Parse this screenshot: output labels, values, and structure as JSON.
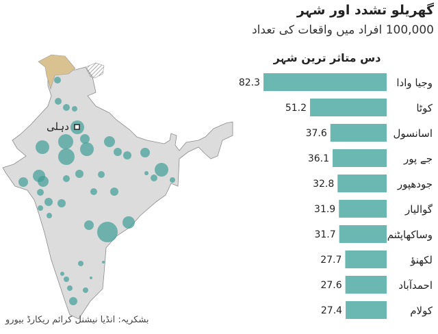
{
  "header": {
    "title": "گھریلو تشدد اور شہر",
    "subtitle": "100,000 افراد میں واقعات کی تعداد"
  },
  "map": {
    "capital_label": "دہلی",
    "land_color": "#dcdcdc",
    "disputed_color": "#d9c290",
    "bubble_color": "#3f9c96"
  },
  "chart_data": {
    "type": "bar",
    "title": "دس متاثر ترین شہر",
    "categories": [
      "وجیا وادا",
      "کوٹا",
      "اسانسول",
      "جے پور",
      "جودھپور",
      "گوالیار",
      "وساکھاپٹنم",
      "لکھنؤ",
      "احمدآباد",
      "کولام"
    ],
    "values": [
      82.3,
      51.2,
      37.6,
      36.1,
      32.8,
      31.9,
      31.7,
      27.7,
      27.6,
      27.4
    ],
    "value_labels": [
      "82.3",
      "51.2",
      "37.6",
      "36.1",
      "32.8",
      "31.9",
      "31.7",
      "27.7",
      "27.6",
      "27.4"
    ],
    "orientation": "horizontal-right-aligned",
    "bar_color": "#6bb8b2"
  },
  "footer": {
    "source": "بشکریہ: انڈیا نیشنل کرائم ریکارڈ بیورو"
  }
}
